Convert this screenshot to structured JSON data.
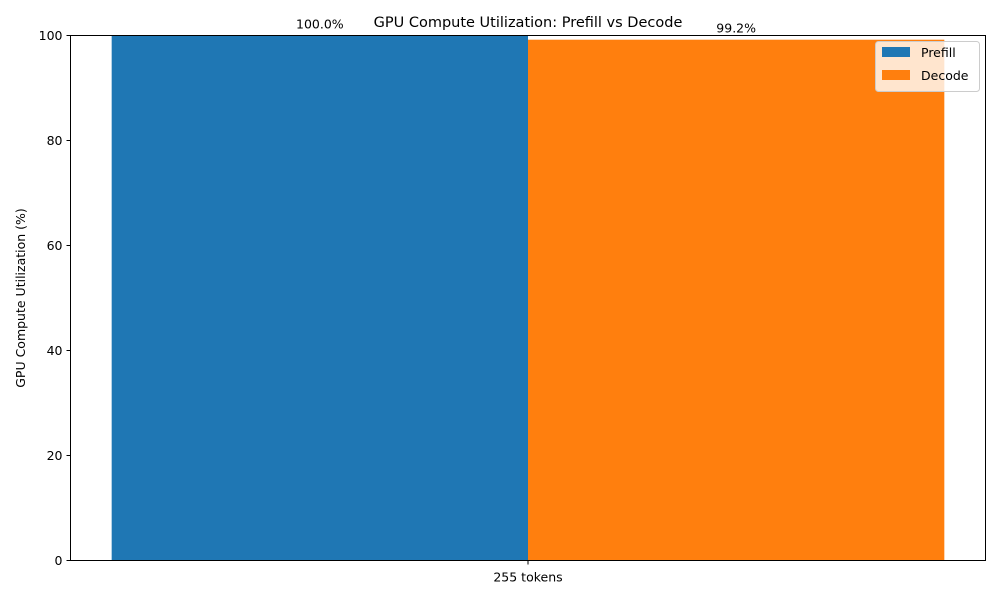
{
  "chart_data": {
    "type": "bar",
    "title": "GPU Compute Utilization: Prefill vs Decode",
    "xlabel": "",
    "ylabel": "GPU Compute Utilization (%)",
    "categories": [
      "255 tokens"
    ],
    "ylim": [
      0,
      100
    ],
    "yticks": [
      0,
      20,
      40,
      60,
      80,
      100
    ],
    "grid": false,
    "legend_position": "top-right",
    "series": [
      {
        "name": "Prefill",
        "values": [
          100.0
        ],
        "labels": [
          "100.0%"
        ],
        "color": "#1f77b4"
      },
      {
        "name": "Decode",
        "values": [
          99.2
        ],
        "labels": [
          "99.2%"
        ],
        "color": "#ff7f0e"
      }
    ]
  }
}
